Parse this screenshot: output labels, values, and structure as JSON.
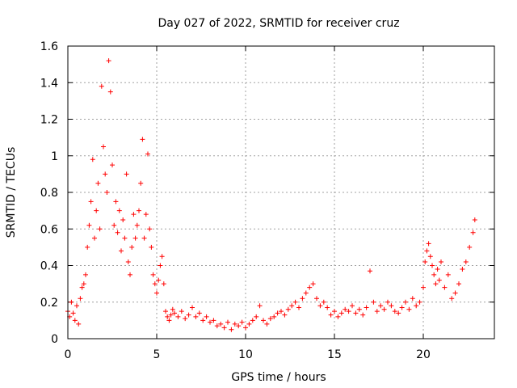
{
  "chart_data": {
    "type": "scatter",
    "title": "Day 027 of 2022, SRMTID for receiver cruz",
    "xlabel": "GPS time / hours",
    "ylabel": "SRMTID / TECUs",
    "xlim": [
      0,
      24
    ],
    "ylim": [
      0,
      1.6
    ],
    "xticks": [
      0,
      5,
      10,
      15,
      20
    ],
    "xtick_labels": [
      "0",
      "5",
      "10",
      "15",
      "20"
    ],
    "yticks": [
      0,
      0.2,
      0.4,
      0.6,
      0.8,
      1.0,
      1.2,
      1.4,
      1.6
    ],
    "ytick_labels": [
      "0",
      "0.2",
      "0.4",
      "0.6",
      "0.8",
      "1",
      "1.2",
      "1.4",
      "1.6"
    ],
    "grid": true,
    "marker": "+",
    "color": "#ff0000",
    "series": [
      {
        "name": "SRMTID",
        "x": [
          0.0,
          0.1,
          0.2,
          0.3,
          0.4,
          0.5,
          0.6,
          0.7,
          0.8,
          0.9,
          1.0,
          1.1,
          1.2,
          1.3,
          1.4,
          1.5,
          1.6,
          1.7,
          1.8,
          1.9,
          2.0,
          2.1,
          2.2,
          2.3,
          2.4,
          2.5,
          2.6,
          2.7,
          2.8,
          2.9,
          3.0,
          3.1,
          3.2,
          3.3,
          3.4,
          3.5,
          3.6,
          3.7,
          3.8,
          3.9,
          4.0,
          4.1,
          4.2,
          4.3,
          4.4,
          4.5,
          4.6,
          4.7,
          4.8,
          4.9,
          5.0,
          5.1,
          5.2,
          5.3,
          5.4,
          5.5,
          5.6,
          5.7,
          5.8,
          5.9,
          6.0,
          6.2,
          6.4,
          6.6,
          6.8,
          7.0,
          7.2,
          7.4,
          7.6,
          7.8,
          8.0,
          8.2,
          8.4,
          8.6,
          8.8,
          9.0,
          9.2,
          9.4,
          9.6,
          9.8,
          10.0,
          10.2,
          10.4,
          10.6,
          10.8,
          11.0,
          11.2,
          11.4,
          11.6,
          11.8,
          12.0,
          12.2,
          12.4,
          12.6,
          12.8,
          13.0,
          13.2,
          13.4,
          13.6,
          13.8,
          14.0,
          14.2,
          14.4,
          14.6,
          14.8,
          15.0,
          15.2,
          15.4,
          15.6,
          15.8,
          16.0,
          16.2,
          16.4,
          16.6,
          16.8,
          17.0,
          17.2,
          17.4,
          17.6,
          17.8,
          18.0,
          18.2,
          18.4,
          18.6,
          18.8,
          19.0,
          19.2,
          19.4,
          19.6,
          19.8,
          20.0,
          20.1,
          20.2,
          20.3,
          20.4,
          20.5,
          20.6,
          20.7,
          20.8,
          20.9,
          21.0,
          21.2,
          21.4,
          21.6,
          21.8,
          22.0,
          22.2,
          22.4,
          22.6,
          22.8,
          22.9
        ],
        "y": [
          0.15,
          0.12,
          0.2,
          0.14,
          0.1,
          0.18,
          0.08,
          0.22,
          0.28,
          0.3,
          0.35,
          0.5,
          0.62,
          0.75,
          0.98,
          0.55,
          0.7,
          0.85,
          0.6,
          1.38,
          1.05,
          0.9,
          0.8,
          1.52,
          1.35,
          0.95,
          0.62,
          0.75,
          0.58,
          0.7,
          0.48,
          0.65,
          0.55,
          0.9,
          0.42,
          0.35,
          0.5,
          0.68,
          0.55,
          0.62,
          0.7,
          0.85,
          1.09,
          0.55,
          0.68,
          1.01,
          0.6,
          0.5,
          0.35,
          0.3,
          0.25,
          0.32,
          0.4,
          0.45,
          0.3,
          0.15,
          0.12,
          0.1,
          0.13,
          0.16,
          0.14,
          0.12,
          0.15,
          0.11,
          0.13,
          0.17,
          0.12,
          0.14,
          0.1,
          0.12,
          0.09,
          0.1,
          0.07,
          0.08,
          0.06,
          0.09,
          0.05,
          0.08,
          0.07,
          0.09,
          0.06,
          0.08,
          0.1,
          0.12,
          0.18,
          0.1,
          0.08,
          0.11,
          0.12,
          0.14,
          0.15,
          0.13,
          0.16,
          0.18,
          0.2,
          0.17,
          0.22,
          0.25,
          0.28,
          0.3,
          0.22,
          0.18,
          0.2,
          0.17,
          0.13,
          0.15,
          0.12,
          0.14,
          0.16,
          0.15,
          0.18,
          0.14,
          0.16,
          0.13,
          0.17,
          0.37,
          0.2,
          0.15,
          0.18,
          0.16,
          0.2,
          0.18,
          0.15,
          0.14,
          0.17,
          0.2,
          0.16,
          0.22,
          0.18,
          0.2,
          0.28,
          0.42,
          0.48,
          0.52,
          0.45,
          0.4,
          0.35,
          0.3,
          0.38,
          0.32,
          0.42,
          0.28,
          0.35,
          0.22,
          0.25,
          0.3,
          0.38,
          0.42,
          0.5,
          0.58,
          0.65
        ]
      }
    ]
  }
}
